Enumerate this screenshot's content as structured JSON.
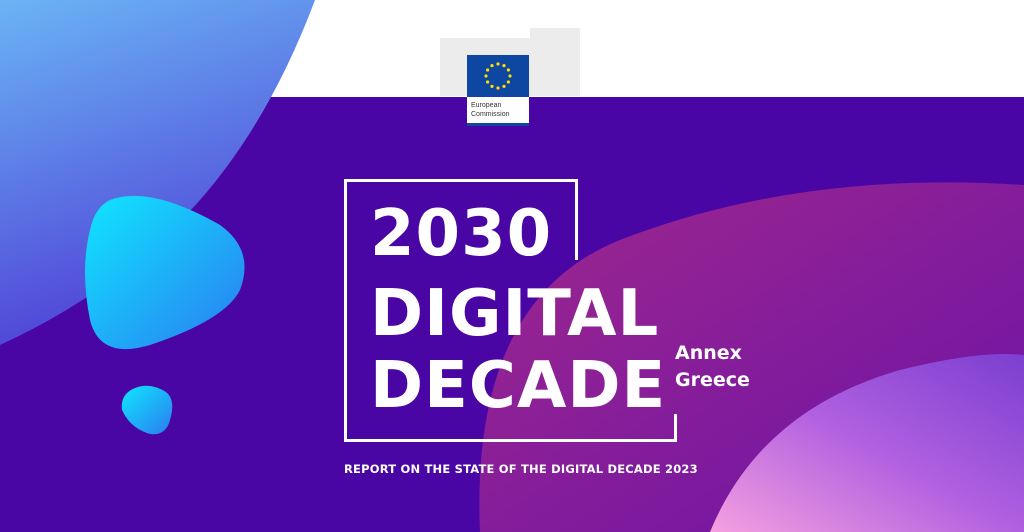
{
  "logo": {
    "line1": "European",
    "line2": "Commission"
  },
  "cover": {
    "title_lines": [
      "2030",
      "DIGITAL",
      "DECADE"
    ],
    "annex": "Annex",
    "country": "Greece",
    "report": "REPORT ON THE STATE OF THE DIGITAL DECADE 2023"
  },
  "colors": {
    "background": "#4a06a5",
    "accent_blue": "#1fc8f5",
    "accent_magenta": "#9a2590"
  }
}
